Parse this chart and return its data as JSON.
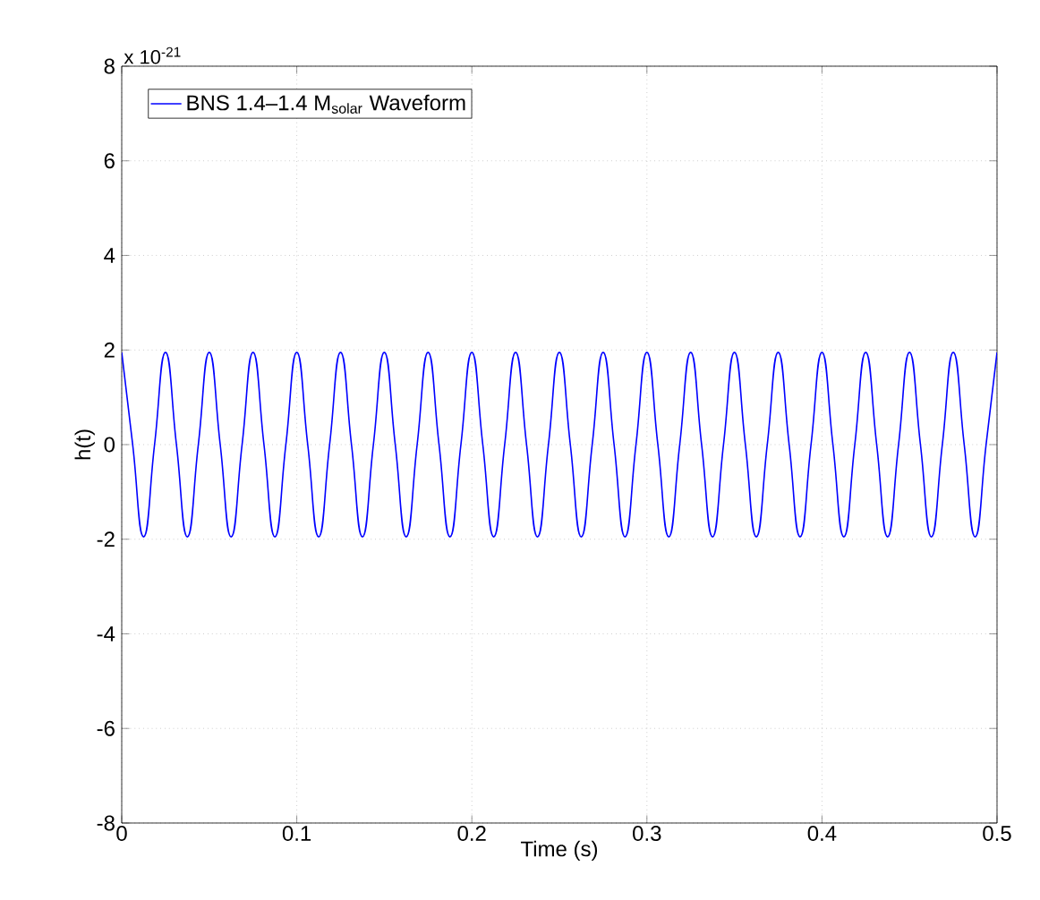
{
  "chart_data": {
    "type": "line",
    "xlabel": "Time (s)",
    "ylabel": "h(t)",
    "annotations": [
      "x 10$^{-21}$"
    ],
    "xlim": [
      0,
      0.5
    ],
    "ylim": [
      -8,
      8
    ],
    "xticks": [
      0,
      0.1,
      0.2,
      0.3,
      0.4,
      0.5
    ],
    "yticks": [
      -8,
      -6,
      -4,
      -2,
      0,
      2,
      4,
      6,
      8
    ],
    "grid": true,
    "legend": "top left",
    "marker": "none",
    "line_style": "solid",
    "series": [
      {
        "name": "BNS 1.4–1.4 M$_{solar}$ Waveform",
        "color": "#0000ff",
        "x": [
          0,
          0.00625,
          0.0125,
          0.01875,
          0.025,
          0.03125,
          0.0375,
          0.04375,
          0.05,
          0.05625,
          0.0625,
          0.06875,
          0.075,
          0.08125,
          0.0875,
          0.09375,
          0.1,
          0.10625,
          0.1125,
          0.11875,
          0.125,
          0.13125,
          0.1375,
          0.14375,
          0.15,
          0.15625,
          0.1625,
          0.16875,
          0.175,
          0.18125,
          0.1875,
          0.19375,
          0.2,
          0.20625,
          0.2125,
          0.21875,
          0.225,
          0.23125,
          0.2375,
          0.24375,
          0.25,
          0.25625,
          0.2625,
          0.26875,
          0.275,
          0.28125,
          0.2875,
          0.29375,
          0.3,
          0.30625,
          0.3125,
          0.31875,
          0.325,
          0.33125,
          0.3375,
          0.34375,
          0.35,
          0.35625,
          0.3625,
          0.36875,
          0.375,
          0.38125,
          0.3875,
          0.39375,
          0.4,
          0.40625,
          0.4125,
          0.41875,
          0.425,
          0.43125,
          0.4375,
          0.44375,
          0.45,
          0.45625,
          0.4625,
          0.46875,
          0.475,
          0.48125,
          0.4875,
          0.49375,
          0.5
        ],
        "values": [
          1.95,
          0,
          -1.95,
          0,
          1.95,
          0,
          -1.95,
          0,
          1.95,
          0,
          -1.95,
          0,
          1.95,
          0,
          -1.95,
          0,
          1.95,
          0,
          -1.95,
          0,
          1.95,
          0,
          -1.95,
          0,
          1.95,
          0,
          -1.95,
          0,
          1.95,
          0,
          -1.95,
          0,
          1.95,
          0,
          -1.95,
          0,
          1.95,
          0,
          -1.95,
          0,
          1.95,
          0,
          -1.95,
          0,
          1.95,
          0,
          -1.95,
          0,
          1.95,
          0,
          -1.95,
          0,
          1.95,
          0,
          -1.95,
          0,
          1.95,
          0,
          -1.95,
          0,
          1.95,
          0,
          -1.95,
          0,
          1.95,
          0,
          -1.95,
          0,
          1.95,
          0,
          -1.95,
          0,
          1.95,
          0,
          -1.95,
          0,
          1.95,
          0,
          -1.95,
          0,
          1.95
        ]
      }
    ]
  }
}
